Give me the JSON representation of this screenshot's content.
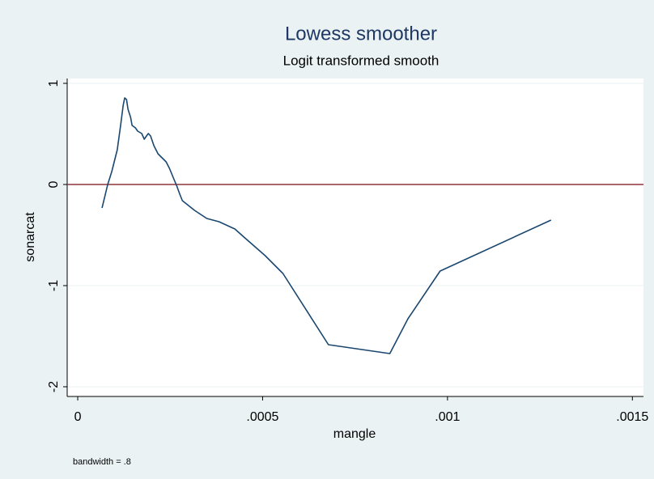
{
  "chart_data": {
    "type": "line",
    "title": "Lowess smoother",
    "subtitle": "Logit transformed smooth",
    "x_label": "mangle",
    "y_label": "sonarcat",
    "note": "bandwidth = .8",
    "x": [
      6.58e-05,
      8.11e-05,
      9.21e-05,
      0.000107,
      0.000116,
      0.000123,
      0.000127,
      0.000132,
      0.000136,
      0.000143,
      0.000147,
      0.000156,
      0.000162,
      0.000173,
      0.00018,
      0.000186,
      0.000191,
      0.000197,
      0.000206,
      0.000217,
      0.000228,
      0.000239,
      0.000248,
      0.000257,
      0.000268,
      0.000276,
      0.000283,
      0.000316,
      0.000349,
      0.000382,
      0.000425,
      0.000447,
      0.000507,
      0.000555,
      0.000678,
      0.000844,
      0.000893,
      0.00098,
      0.00128
    ],
    "series": [
      {
        "color": "#1a476f",
        "values": [
          -0.232,
          0,
          0.128,
          0.344,
          0.584,
          0.784,
          0.856,
          0.84,
          0.744,
          0.664,
          0.584,
          0.56,
          0.528,
          0.504,
          0.448,
          0.48,
          0.504,
          0.48,
          0.384,
          0.304,
          0.264,
          0.224,
          0.16,
          0.08,
          -0.016,
          -0.096,
          -0.16,
          -0.256,
          -0.336,
          -0.368,
          -0.44,
          -0.512,
          -0.704,
          -0.88,
          -1.584,
          -1.672,
          -1.328,
          -0.856,
          -0.352
        ]
      }
    ],
    "xlim": [
      -2.85e-05,
      0.00153
    ],
    "ylim": [
      -2.096,
      1.048
    ],
    "xticks": [
      0,
      {
        "value": 0.0005,
        "label": ".0005"
      },
      {
        "value": 0.001,
        "label": ".001"
      },
      {
        "value": 0.0015,
        "label": ".0015"
      }
    ],
    "yticks": [
      -2,
      -1,
      0,
      1
    ],
    "grid": true,
    "reference_line": {
      "y": 0,
      "color": "#90353b"
    }
  }
}
